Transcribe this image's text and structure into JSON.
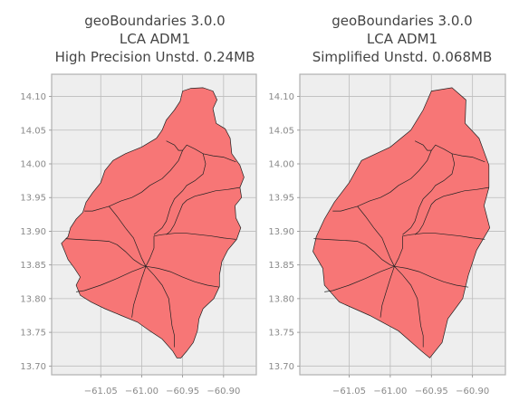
{
  "panels": [
    {
      "id": "left",
      "title_lines": [
        "geoBoundaries 3.0.0",
        "LCA ADM1",
        "High Precision Unstd. 0.24MB"
      ]
    },
    {
      "id": "right",
      "title_lines": [
        "geoBoundaries 3.0.0",
        "LCA ADM1",
        "Simplified Unstd. 0.068MB"
      ]
    }
  ],
  "map": {
    "fill_color": "#f77676",
    "edge_color": "#222222",
    "background_color": "#eeeeee",
    "grid_color": "#bcbcbc",
    "grid": true
  },
  "axes": {
    "x_ticks": [
      -61.05,
      -61.0,
      -60.95,
      -60.9
    ],
    "x_tick_labels": [
      "−61.05",
      "−61.00",
      "−60.95",
      "−60.90"
    ],
    "y_ticks": [
      14.1,
      14.05,
      14.0,
      13.95,
      13.9,
      13.85,
      13.8,
      13.75,
      13.7
    ],
    "y_tick_labels": [
      "14.10",
      "14.05",
      "14.00",
      "13.95",
      "13.90",
      "13.85",
      "13.80",
      "13.75",
      "13.70"
    ],
    "xlim": [
      -61.11,
      -60.86
    ],
    "ylim": [
      13.687,
      14.133
    ]
  },
  "outline_lonlat": [
    [
      -60.925,
      14.113
    ],
    [
      -60.913,
      14.108
    ],
    [
      -60.908,
      14.095
    ],
    [
      -60.913,
      14.082
    ],
    [
      -60.909,
      14.06
    ],
    [
      -60.898,
      14.052
    ],
    [
      -60.892,
      14.038
    ],
    [
      -60.89,
      14.015
    ],
    [
      -60.88,
      13.998
    ],
    [
      -60.875,
      13.98
    ],
    [
      -60.88,
      13.965
    ],
    [
      -60.878,
      13.95
    ],
    [
      -60.886,
      13.938
    ],
    [
      -60.885,
      13.92
    ],
    [
      -60.879,
      13.905
    ],
    [
      -60.884,
      13.888
    ],
    [
      -60.895,
      13.872
    ],
    [
      -60.902,
      13.855
    ],
    [
      -60.905,
      13.835
    ],
    [
      -60.905,
      13.818
    ],
    [
      -60.912,
      13.8
    ],
    [
      -60.925,
      13.785
    ],
    [
      -60.93,
      13.77
    ],
    [
      -60.932,
      13.752
    ],
    [
      -60.937,
      13.735
    ],
    [
      -60.945,
      13.722
    ],
    [
      -60.952,
      13.712
    ],
    [
      -60.957,
      13.712
    ],
    [
      -60.962,
      13.722
    ],
    [
      -60.975,
      13.74
    ],
    [
      -60.99,
      13.752
    ],
    [
      -61.005,
      13.765
    ],
    [
      -61.025,
      13.775
    ],
    [
      -61.045,
      13.785
    ],
    [
      -61.062,
      13.795
    ],
    [
      -61.075,
      13.805
    ],
    [
      -61.08,
      13.82
    ],
    [
      -61.075,
      13.832
    ],
    [
      -61.082,
      13.845
    ],
    [
      -61.09,
      13.858
    ],
    [
      -61.094,
      13.87
    ],
    [
      -61.098,
      13.882
    ],
    [
      -61.09,
      13.892
    ],
    [
      -61.087,
      13.905
    ],
    [
      -61.08,
      13.918
    ],
    [
      -61.072,
      13.928
    ],
    [
      -61.068,
      13.943
    ],
    [
      -61.06,
      13.957
    ],
    [
      -61.05,
      13.972
    ],
    [
      -61.045,
      13.99
    ],
    [
      -61.035,
      14.005
    ],
    [
      -61.02,
      14.015
    ],
    [
      -61.0,
      14.025
    ],
    [
      -60.982,
      14.038
    ],
    [
      -60.975,
      14.05
    ],
    [
      -60.97,
      14.065
    ],
    [
      -60.96,
      14.08
    ],
    [
      -60.953,
      14.093
    ],
    [
      -60.95,
      14.108
    ],
    [
      -60.94,
      14.112
    ]
  ],
  "boundaries_lonlat": [
    [
      [
        -60.97,
        14.034
      ],
      [
        -60.96,
        14.028
      ],
      [
        -60.955,
        14.02
      ],
      [
        -60.95,
        14.02
      ],
      [
        -60.945,
        14.028
      ],
      [
        -60.935,
        14.022
      ],
      [
        -60.925,
        14.015
      ],
      [
        -60.913,
        14.012
      ],
      [
        -60.9,
        14.01
      ],
      [
        -60.885,
        14.003
      ]
    ],
    [
      [
        -60.95,
        14.02
      ],
      [
        -60.955,
        14.005
      ],
      [
        -60.965,
        13.99
      ],
      [
        -60.975,
        13.978
      ],
      [
        -60.99,
        13.968
      ],
      [
        -61.0,
        13.958
      ],
      [
        -61.012,
        13.95
      ],
      [
        -61.025,
        13.945
      ],
      [
        -61.04,
        13.937
      ],
      [
        -61.06,
        13.93
      ],
      [
        -61.07,
        13.93
      ]
    ],
    [
      [
        -60.925,
        14.015
      ],
      [
        -60.922,
        14.0
      ],
      [
        -60.925,
        13.985
      ],
      [
        -60.935,
        13.975
      ],
      [
        -60.945,
        13.968
      ],
      [
        -60.95,
        13.96
      ],
      [
        -60.96,
        13.948
      ],
      [
        -60.965,
        13.935
      ],
      [
        -60.97,
        13.915
      ],
      [
        -60.975,
        13.905
      ],
      [
        -60.985,
        13.895
      ]
    ],
    [
      [
        -61.04,
        13.937
      ],
      [
        -61.03,
        13.922
      ],
      [
        -61.02,
        13.905
      ],
      [
        -61.01,
        13.89
      ],
      [
        -61.005,
        13.875
      ],
      [
        -61.0,
        13.86
      ],
      [
        -60.995,
        13.848
      ]
    ],
    [
      [
        -61.093,
        13.889
      ],
      [
        -61.08,
        13.888
      ],
      [
        -61.065,
        13.887
      ],
      [
        -61.05,
        13.886
      ],
      [
        -61.04,
        13.885
      ],
      [
        -61.03,
        13.88
      ],
      [
        -61.02,
        13.87
      ],
      [
        -61.01,
        13.858
      ],
      [
        -61.0,
        13.85
      ],
      [
        -60.995,
        13.848
      ]
    ],
    [
      [
        -60.885,
        13.888
      ],
      [
        -60.9,
        13.89
      ],
      [
        -60.915,
        13.893
      ],
      [
        -60.93,
        13.895
      ],
      [
        -60.945,
        13.897
      ],
      [
        -60.96,
        13.897
      ],
      [
        -60.975,
        13.895
      ],
      [
        -60.985,
        13.893
      ]
    ],
    [
      [
        -60.985,
        13.893
      ],
      [
        -60.985,
        13.875
      ],
      [
        -60.99,
        13.86
      ],
      [
        -60.995,
        13.848
      ]
    ],
    [
      [
        -60.88,
        13.965
      ],
      [
        -60.895,
        13.962
      ],
      [
        -60.91,
        13.96
      ],
      [
        -60.925,
        13.955
      ],
      [
        -60.935,
        13.952
      ],
      [
        -60.945,
        13.946
      ],
      [
        -60.95,
        13.94
      ],
      [
        -60.955,
        13.925
      ],
      [
        -60.96,
        13.91
      ],
      [
        -60.965,
        13.9
      ],
      [
        -60.97,
        13.895
      ]
    ],
    [
      [
        -60.995,
        13.848
      ],
      [
        -60.98,
        13.845
      ],
      [
        -60.965,
        13.84
      ],
      [
        -60.95,
        13.832
      ],
      [
        -60.935,
        13.825
      ],
      [
        -60.92,
        13.82
      ],
      [
        -60.905,
        13.817
      ]
    ],
    [
      [
        -60.995,
        13.848
      ],
      [
        -60.985,
        13.835
      ],
      [
        -60.975,
        13.82
      ],
      [
        -60.967,
        13.8
      ],
      [
        -60.965,
        13.78
      ],
      [
        -60.963,
        13.76
      ],
      [
        -60.96,
        13.745
      ],
      [
        -60.96,
        13.728
      ]
    ],
    [
      [
        -60.995,
        13.848
      ],
      [
        -61.0,
        13.83
      ],
      [
        -61.005,
        13.81
      ],
      [
        -61.01,
        13.79
      ],
      [
        -61.012,
        13.772
      ]
    ],
    [
      [
        -60.995,
        13.848
      ],
      [
        -61.012,
        13.84
      ],
      [
        -61.03,
        13.83
      ],
      [
        -61.05,
        13.82
      ],
      [
        -61.07,
        13.812
      ],
      [
        -61.08,
        13.81
      ]
    ]
  ]
}
